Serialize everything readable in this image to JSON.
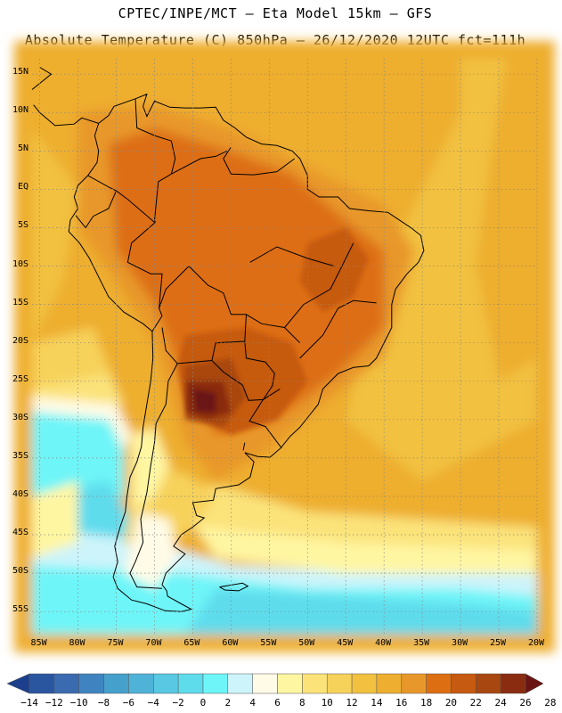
{
  "title_line1": "CPTEC/INPE/MCT –  Eta Model 15km – GFS",
  "title_line2": "Absolute Temperature (C) 850hPa – 26/12/2020 12UTC fct=111h",
  "y_labels": [
    "15N",
    "10N",
    "5N",
    "EQ",
    "5S",
    "10S",
    "15S",
    "20S",
    "25S",
    "30S",
    "35S",
    "40S",
    "45S",
    "50S",
    "55S"
  ],
  "x_labels": [
    "85W",
    "80W",
    "75W",
    "70W",
    "65W",
    "60W",
    "55W",
    "50W",
    "45W",
    "40W",
    "35W",
    "30W",
    "25W",
    "20W"
  ],
  "colorbar": {
    "labels": [
      "-14",
      "-12",
      "-10",
      "-8",
      "-6",
      "-4",
      "-2",
      "0",
      "2",
      "4",
      "6",
      "8",
      "10",
      "12",
      "14",
      "16",
      "18",
      "20",
      "22",
      "24",
      "26",
      "28"
    ],
    "colors": [
      "#1b3f8c",
      "#2a56a0",
      "#3a6bb0",
      "#3f84c0",
      "#46a0cc",
      "#4fb3d8",
      "#58c8e3",
      "#5fdcec",
      "#6ef5f8",
      "#cdf4fb",
      "#fffbe6",
      "#fff6a2",
      "#fbe37a",
      "#f7d25a",
      "#f2c13f",
      "#eeae2f",
      "#e8982a",
      "#dd6e12",
      "#c65a10",
      "#a94710",
      "#8a2c10",
      "#6b1414"
    ]
  },
  "map": {
    "lon_range": [
      -86,
      -20
    ],
    "lat_range": [
      17,
      -58
    ],
    "field_colors": {
      "t10": "#fbe37a",
      "t12": "#f7d25a",
      "t14": "#f2c13f",
      "t16": "#eeae2f",
      "t18": "#e8982a",
      "t20": "#dd6e12",
      "t22": "#c65a10",
      "t24": "#a94710",
      "t26": "#8a2c10",
      "t28": "#6b1414",
      "t8": "#fff6a2",
      "t6": "#fffbe6",
      "t4": "#cdf4fb",
      "t2": "#6ef5f8",
      "t0": "#5fdcec",
      "tm2": "#58c8e3",
      "tm4": "#4fb3d8"
    }
  }
}
